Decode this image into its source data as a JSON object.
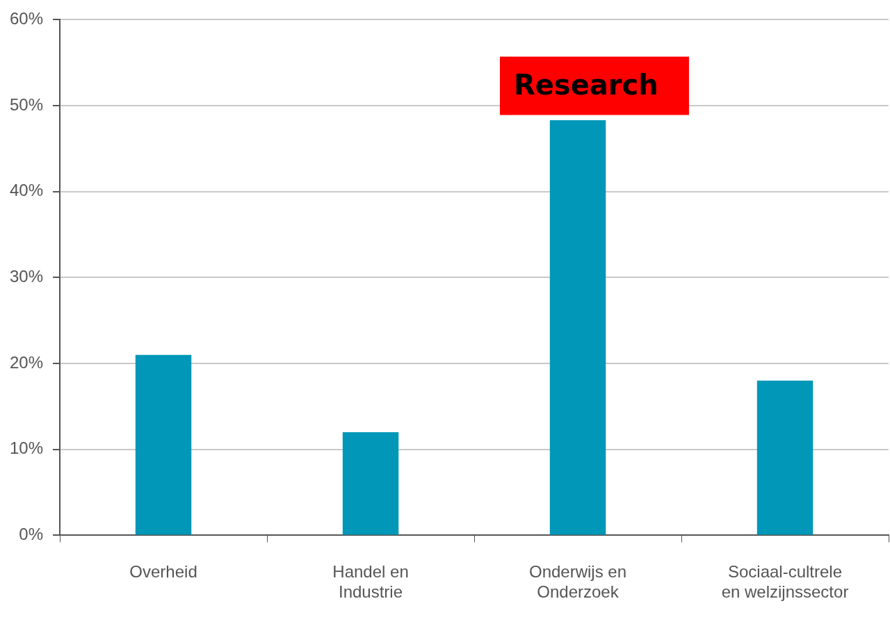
{
  "chart_data": {
    "type": "bar",
    "categories": [
      "Overheid",
      "Handel en\nIndustrie",
      "Onderwijs en\nOnderzoek",
      "Sociaal-cultrele\nen welzijnssector"
    ],
    "values": [
      21,
      12,
      48.3,
      18
    ],
    "color": "#0097b8",
    "ylim": [
      0,
      60
    ],
    "yticks": [
      {
        "value": 0,
        "label": "0%"
      },
      {
        "value": 10,
        "label": "10%"
      },
      {
        "value": 20,
        "label": "20%"
      },
      {
        "value": 30,
        "label": "30%"
      },
      {
        "value": 40,
        "label": "40%"
      },
      {
        "value": 50,
        "label": "50%"
      },
      {
        "value": 60,
        "label": "60%"
      }
    ],
    "grid": "y",
    "annotations": [
      "Research"
    ]
  }
}
